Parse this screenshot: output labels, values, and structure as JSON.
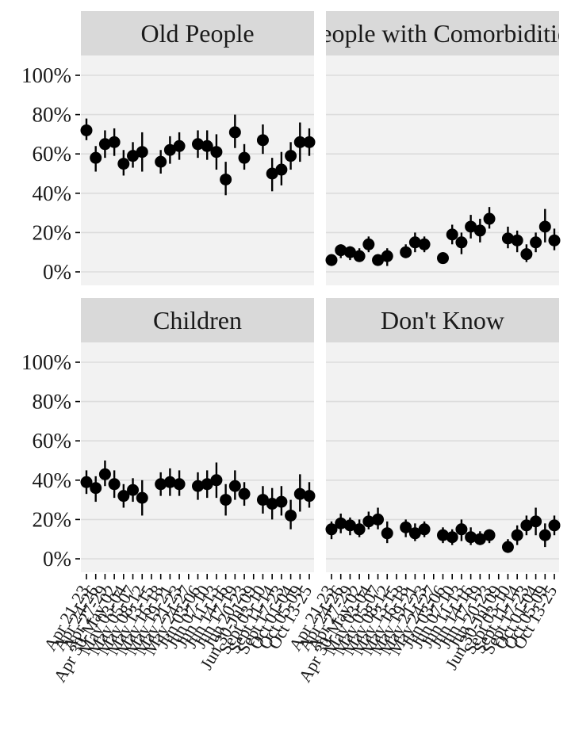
{
  "chart_data": {
    "type": "scatter",
    "subtype": "point-range facets",
    "y_axis": {
      "ticks": [
        "0%",
        "20%",
        "40%",
        "60%",
        "80%",
        "100%"
      ],
      "ylim": [
        0,
        100
      ],
      "unit": "%"
    },
    "grid": true,
    "dates": [
      "Apr 21-23",
      "Apr 24-26",
      "Apr 27-29",
      "Apr 30-May 02",
      "May 03-04",
      "May 05-07",
      "May 08-12",
      "May 13-15",
      "May 16-18",
      "May 19-21",
      "May 21-23",
      "May 24-27",
      "Jun 03-06",
      "Jun 07-10",
      "Jun 11-13",
      "Jun 14-16",
      "Jun 17-19",
      "Jun 20-23",
      "Jun 30-Jul 09",
      "Sept 03-10",
      "Sept 11-14",
      "Sept 17-23",
      "Oct 01-04",
      "Oct 05-09",
      "Oct 13-25"
    ],
    "panels": [
      {
        "title": "Old People",
        "points": [
          {
            "x": 1,
            "y": 72,
            "lo": 67,
            "hi": 78
          },
          {
            "x": 2,
            "y": 58,
            "lo": 51,
            "hi": 64
          },
          {
            "x": 3,
            "y": 65,
            "lo": 58,
            "hi": 72
          },
          {
            "x": 4,
            "y": 66,
            "lo": 59,
            "hi": 73
          },
          {
            "x": 5,
            "y": 55,
            "lo": 49,
            "hi": 62
          },
          {
            "x": 6,
            "y": 59,
            "lo": 53,
            "hi": 66
          },
          {
            "x": 7,
            "y": 61,
            "lo": 51,
            "hi": 71
          },
          {
            "x": 9,
            "y": 56,
            "lo": 50,
            "hi": 62
          },
          {
            "x": 10,
            "y": 62,
            "lo": 55,
            "hi": 69
          },
          {
            "x": 11,
            "y": 64,
            "lo": 57,
            "hi": 71
          },
          {
            "x": 13,
            "y": 65,
            "lo": 58,
            "hi": 72
          },
          {
            "x": 14,
            "y": 64,
            "lo": 57,
            "hi": 72
          },
          {
            "x": 15,
            "y": 61,
            "lo": 52,
            "hi": 70
          },
          {
            "x": 16,
            "y": 47,
            "lo": 39,
            "hi": 56
          },
          {
            "x": 17,
            "y": 71,
            "lo": 63,
            "hi": 80
          },
          {
            "x": 18,
            "y": 58,
            "lo": 52,
            "hi": 65
          },
          {
            "x": 20,
            "y": 67,
            "lo": 60,
            "hi": 75
          },
          {
            "x": 21,
            "y": 50,
            "lo": 41,
            "hi": 58
          },
          {
            "x": 22,
            "y": 52,
            "lo": 44,
            "hi": 61
          },
          {
            "x": 23,
            "y": 59,
            "lo": 52,
            "hi": 66
          },
          {
            "x": 24,
            "y": 66,
            "lo": 56,
            "hi": 76
          },
          {
            "x": 25,
            "y": 66,
            "lo": 59,
            "hi": 73
          }
        ]
      },
      {
        "title": "People with Comorbidities",
        "points": [
          {
            "x": 1,
            "y": 6,
            "lo": 3,
            "hi": 9
          },
          {
            "x": 2,
            "y": 11,
            "lo": 7,
            "hi": 14
          },
          {
            "x": 3,
            "y": 10,
            "lo": 6,
            "hi": 13
          },
          {
            "x": 4,
            "y": 8,
            "lo": 5,
            "hi": 12
          },
          {
            "x": 5,
            "y": 14,
            "lo": 10,
            "hi": 18
          },
          {
            "x": 6,
            "y": 6,
            "lo": 4,
            "hi": 9
          },
          {
            "x": 7,
            "y": 8,
            "lo": 3,
            "hi": 12
          },
          {
            "x": 9,
            "y": 10,
            "lo": 7,
            "hi": 14
          },
          {
            "x": 10,
            "y": 15,
            "lo": 10,
            "hi": 20
          },
          {
            "x": 11,
            "y": 14,
            "lo": 10,
            "hi": 18
          },
          {
            "x": 13,
            "y": 7,
            "lo": 5,
            "hi": 10
          },
          {
            "x": 14,
            "y": 19,
            "lo": 14,
            "hi": 24
          },
          {
            "x": 15,
            "y": 15,
            "lo": 9,
            "hi": 20
          },
          {
            "x": 16,
            "y": 23,
            "lo": 17,
            "hi": 29
          },
          {
            "x": 17,
            "y": 21,
            "lo": 15,
            "hi": 27
          },
          {
            "x": 18,
            "y": 27,
            "lo": 22,
            "hi": 33
          },
          {
            "x": 20,
            "y": 17,
            "lo": 12,
            "hi": 23
          },
          {
            "x": 21,
            "y": 16,
            "lo": 10,
            "hi": 21
          },
          {
            "x": 22,
            "y": 9,
            "lo": 5,
            "hi": 14
          },
          {
            "x": 23,
            "y": 15,
            "lo": 10,
            "hi": 20
          },
          {
            "x": 24,
            "y": 23,
            "lo": 15,
            "hi": 32
          },
          {
            "x": 25,
            "y": 16,
            "lo": 11,
            "hi": 22
          }
        ]
      },
      {
        "title": "Children",
        "points": [
          {
            "x": 1,
            "y": 39,
            "lo": 33,
            "hi": 45
          },
          {
            "x": 2,
            "y": 36,
            "lo": 29,
            "hi": 42
          },
          {
            "x": 3,
            "y": 43,
            "lo": 37,
            "hi": 50
          },
          {
            "x": 4,
            "y": 38,
            "lo": 31,
            "hi": 45
          },
          {
            "x": 5,
            "y": 32,
            "lo": 26,
            "hi": 38
          },
          {
            "x": 6,
            "y": 35,
            "lo": 29,
            "hi": 41
          },
          {
            "x": 7,
            "y": 31,
            "lo": 22,
            "hi": 40
          },
          {
            "x": 9,
            "y": 38,
            "lo": 32,
            "hi": 44
          },
          {
            "x": 10,
            "y": 39,
            "lo": 32,
            "hi": 46
          },
          {
            "x": 11,
            "y": 38,
            "lo": 32,
            "hi": 45
          },
          {
            "x": 13,
            "y": 37,
            "lo": 30,
            "hi": 44
          },
          {
            "x": 14,
            "y": 38,
            "lo": 31,
            "hi": 45
          },
          {
            "x": 15,
            "y": 40,
            "lo": 31,
            "hi": 49
          },
          {
            "x": 16,
            "y": 30,
            "lo": 22,
            "hi": 38
          },
          {
            "x": 17,
            "y": 37,
            "lo": 30,
            "hi": 45
          },
          {
            "x": 18,
            "y": 33,
            "lo": 27,
            "hi": 39
          },
          {
            "x": 20,
            "y": 30,
            "lo": 23,
            "hi": 37
          },
          {
            "x": 21,
            "y": 28,
            "lo": 20,
            "hi": 36
          },
          {
            "x": 22,
            "y": 29,
            "lo": 22,
            "hi": 37
          },
          {
            "x": 23,
            "y": 22,
            "lo": 15,
            "hi": 30
          },
          {
            "x": 24,
            "y": 33,
            "lo": 24,
            "hi": 43
          },
          {
            "x": 25,
            "y": 32,
            "lo": 26,
            "hi": 39
          }
        ]
      },
      {
        "title": "Don't Know",
        "points": [
          {
            "x": 1,
            "y": 15,
            "lo": 10,
            "hi": 19
          },
          {
            "x": 2,
            "y": 18,
            "lo": 13,
            "hi": 23
          },
          {
            "x": 3,
            "y": 17,
            "lo": 12,
            "hi": 21
          },
          {
            "x": 4,
            "y": 15,
            "lo": 11,
            "hi": 20
          },
          {
            "x": 5,
            "y": 19,
            "lo": 15,
            "hi": 24
          },
          {
            "x": 6,
            "y": 20,
            "lo": 15,
            "hi": 26
          },
          {
            "x": 7,
            "y": 13,
            "lo": 8,
            "hi": 19
          },
          {
            "x": 9,
            "y": 16,
            "lo": 11,
            "hi": 20
          },
          {
            "x": 10,
            "y": 13,
            "lo": 9,
            "hi": 18
          },
          {
            "x": 11,
            "y": 15,
            "lo": 11,
            "hi": 19
          },
          {
            "x": 13,
            "y": 12,
            "lo": 8,
            "hi": 16
          },
          {
            "x": 14,
            "y": 11,
            "lo": 7,
            "hi": 15
          },
          {
            "x": 15,
            "y": 15,
            "lo": 9,
            "hi": 20
          },
          {
            "x": 16,
            "y": 11,
            "lo": 7,
            "hi": 16
          },
          {
            "x": 17,
            "y": 10,
            "lo": 7,
            "hi": 14
          },
          {
            "x": 18,
            "y": 12,
            "lo": 8,
            "hi": 15
          },
          {
            "x": 20,
            "y": 6,
            "lo": 3,
            "hi": 10
          },
          {
            "x": 21,
            "y": 12,
            "lo": 7,
            "hi": 17
          },
          {
            "x": 22,
            "y": 17,
            "lo": 12,
            "hi": 22
          },
          {
            "x": 23,
            "y": 19,
            "lo": 12,
            "hi": 26
          },
          {
            "x": 24,
            "y": 12,
            "lo": 6,
            "hi": 18
          },
          {
            "x": 25,
            "y": 17,
            "lo": 12,
            "hi": 22
          }
        ]
      }
    ]
  },
  "colors": {
    "strip_bg": "#d9d9d9",
    "panel_bg": "#f2f2f2",
    "grid": "#dcdcdc",
    "point": "#000000",
    "text": "#1a1a1a"
  }
}
